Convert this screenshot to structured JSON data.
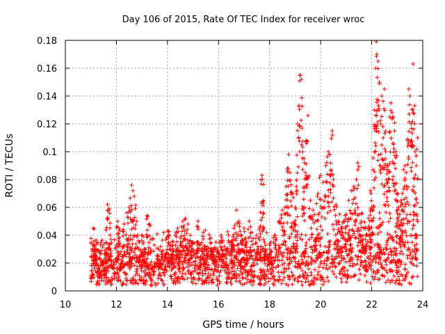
{
  "chart_data": {
    "type": "scatter",
    "title": "Day 106 of 2015, Rate Of TEC Index for receiver wroc",
    "xlabel": "GPS time / hours",
    "ylabel": "ROTI / TECUs",
    "xlim": [
      10,
      24
    ],
    "ylim": [
      0,
      0.18
    ],
    "xticks": [
      10,
      12,
      14,
      16,
      18,
      20,
      22,
      24
    ],
    "xtick_labels": [
      "10",
      "12",
      "14",
      "16",
      "18",
      "20",
      "22",
      "24"
    ],
    "yticks": [
      0,
      0.02,
      0.04,
      0.06,
      0.08,
      0.1,
      0.12,
      0.14,
      0.16,
      0.18
    ],
    "ytick_labels": [
      "0",
      "0.02",
      "0.04",
      "0.06",
      "0.08",
      "0.1",
      "0.12",
      "0.14",
      "0.16",
      "0.18"
    ],
    "grid": true,
    "marker": "+",
    "color": "#ff0000",
    "x_range_of_data": [
      11.0,
      23.8
    ],
    "series": [
      {
        "name": "ROTI",
        "points": [
          [
            11.05,
            0.012
          ],
          [
            11.1,
            0.045
          ],
          [
            11.15,
            0.025
          ],
          [
            11.2,
            0.03
          ],
          [
            11.3,
            0.018
          ],
          [
            11.4,
            0.035
          ],
          [
            11.5,
            0.022
          ],
          [
            11.55,
            0.015
          ],
          [
            11.6,
            0.03
          ],
          [
            11.65,
            0.062
          ],
          [
            11.7,
            0.058
          ],
          [
            11.75,
            0.04
          ],
          [
            11.8,
            0.025
          ],
          [
            11.9,
            0.02
          ],
          [
            12.0,
            0.033
          ],
          [
            12.05,
            0.05
          ],
          [
            12.1,
            0.045
          ],
          [
            12.2,
            0.022
          ],
          [
            12.3,
            0.048
          ],
          [
            12.4,
            0.056
          ],
          [
            12.5,
            0.06
          ],
          [
            12.55,
            0.03
          ],
          [
            12.6,
            0.076
          ],
          [
            12.65,
            0.072
          ],
          [
            12.7,
            0.068
          ],
          [
            12.8,
            0.05
          ],
          [
            12.9,
            0.035
          ],
          [
            13.0,
            0.04
          ],
          [
            13.1,
            0.03
          ],
          [
            13.2,
            0.054
          ],
          [
            13.3,
            0.048
          ],
          [
            13.5,
            0.02
          ],
          [
            13.7,
            0.018
          ],
          [
            13.9,
            0.025
          ],
          [
            14.0,
            0.043
          ],
          [
            14.1,
            0.03
          ],
          [
            14.2,
            0.035
          ],
          [
            14.3,
            0.04
          ],
          [
            14.4,
            0.045
          ],
          [
            14.5,
            0.038
          ],
          [
            14.6,
            0.05
          ],
          [
            14.7,
            0.052
          ],
          [
            14.8,
            0.048
          ],
          [
            14.9,
            0.04
          ],
          [
            15.0,
            0.035
          ],
          [
            15.2,
            0.05
          ],
          [
            15.4,
            0.042
          ],
          [
            15.5,
            0.03
          ],
          [
            15.6,
            0.028
          ],
          [
            15.7,
            0.038
          ],
          [
            15.8,
            0.03
          ],
          [
            15.9,
            0.035
          ],
          [
            16.0,
            0.028
          ],
          [
            16.1,
            0.04
          ],
          [
            16.2,
            0.025
          ],
          [
            16.3,
            0.03
          ],
          [
            16.5,
            0.035
          ],
          [
            16.6,
            0.045
          ],
          [
            16.7,
            0.058
          ],
          [
            16.8,
            0.05
          ],
          [
            16.9,
            0.04
          ],
          [
            17.0,
            0.045
          ],
          [
            17.1,
            0.035
          ],
          [
            17.2,
            0.05
          ],
          [
            17.3,
            0.042
          ],
          [
            17.5,
            0.04
          ],
          [
            17.6,
            0.045
          ],
          [
            17.7,
            0.083
          ],
          [
            17.72,
            0.08
          ],
          [
            17.75,
            0.056
          ],
          [
            17.8,
            0.035
          ],
          [
            18.0,
            0.03
          ],
          [
            18.2,
            0.04
          ],
          [
            18.4,
            0.05
          ],
          [
            18.5,
            0.058
          ],
          [
            18.6,
            0.06
          ],
          [
            18.65,
            0.075
          ],
          [
            18.7,
            0.088
          ],
          [
            18.75,
            0.098
          ],
          [
            18.8,
            0.085
          ],
          [
            18.9,
            0.07
          ],
          [
            19.0,
            0.06
          ],
          [
            19.05,
            0.075
          ],
          [
            19.1,
            0.12
          ],
          [
            19.15,
            0.133
          ],
          [
            19.2,
            0.155
          ],
          [
            19.25,
            0.152
          ],
          [
            19.3,
            0.1
          ],
          [
            19.35,
            0.095
          ],
          [
            19.4,
            0.085
          ],
          [
            19.45,
            0.108
          ],
          [
            19.5,
            0.126
          ],
          [
            19.6,
            0.065
          ],
          [
            19.7,
            0.058
          ],
          [
            19.8,
            0.05
          ],
          [
            19.9,
            0.07
          ],
          [
            20.0,
            0.083
          ],
          [
            20.1,
            0.078
          ],
          [
            20.2,
            0.09
          ],
          [
            20.3,
            0.1
          ],
          [
            20.35,
            0.098
          ],
          [
            20.4,
            0.087
          ],
          [
            20.45,
            0.115
          ],
          [
            20.5,
            0.08
          ],
          [
            20.6,
            0.062
          ],
          [
            20.7,
            0.05
          ],
          [
            20.8,
            0.045
          ],
          [
            20.9,
            0.05
          ],
          [
            21.0,
            0.055
          ],
          [
            21.1,
            0.065
          ],
          [
            21.2,
            0.072
          ],
          [
            21.3,
            0.075
          ],
          [
            21.4,
            0.08
          ],
          [
            21.45,
            0.092
          ],
          [
            21.5,
            0.055
          ],
          [
            21.6,
            0.05
          ],
          [
            21.7,
            0.045
          ],
          [
            21.8,
            0.04
          ],
          [
            21.9,
            0.045
          ],
          [
            21.95,
            0.072
          ],
          [
            22.0,
            0.06
          ],
          [
            22.05,
            0.087
          ],
          [
            22.1,
            0.13
          ],
          [
            22.15,
            0.16
          ],
          [
            22.18,
            0.179
          ],
          [
            22.2,
            0.17
          ],
          [
            22.25,
            0.165
          ],
          [
            22.3,
            0.15
          ],
          [
            22.35,
            0.12
          ],
          [
            22.4,
            0.14
          ],
          [
            22.45,
            0.11
          ],
          [
            22.5,
            0.145
          ],
          [
            22.55,
            0.1
          ],
          [
            22.6,
            0.09
          ],
          [
            22.65,
            0.08
          ],
          [
            22.7,
            0.125
          ],
          [
            22.75,
            0.135
          ],
          [
            22.8,
            0.128
          ],
          [
            22.85,
            0.125
          ],
          [
            22.9,
            0.115
          ],
          [
            22.95,
            0.1
          ],
          [
            23.0,
            0.07
          ],
          [
            23.05,
            0.06
          ],
          [
            23.1,
            0.055
          ],
          [
            23.15,
            0.065
          ],
          [
            23.2,
            0.07
          ],
          [
            23.3,
            0.09
          ],
          [
            23.35,
            0.085
          ],
          [
            23.4,
            0.108
          ],
          [
            23.45,
            0.145
          ],
          [
            23.5,
            0.14
          ],
          [
            23.55,
            0.12
          ],
          [
            23.6,
            0.13
          ],
          [
            23.62,
            0.163
          ],
          [
            23.65,
            0.075
          ],
          [
            23.7,
            0.1
          ],
          [
            23.75,
            0.09
          ],
          [
            23.8,
            0.11
          ]
        ]
      }
    ]
  }
}
